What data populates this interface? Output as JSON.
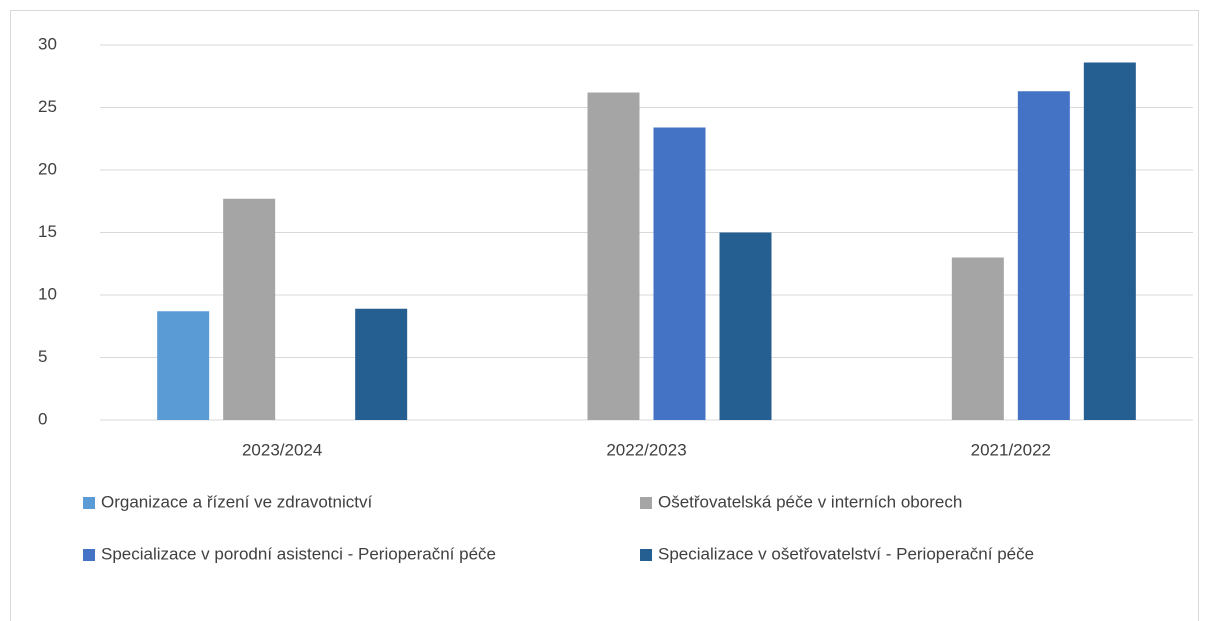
{
  "chart_data": {
    "type": "bar",
    "categories": [
      "2023/2024",
      "2022/2023",
      "2021/2022"
    ],
    "series": [
      {
        "name": "Organizace a řízení ve zdravotnictví",
        "color": "#5b9bd5",
        "values": [
          8.7,
          null,
          null
        ]
      },
      {
        "name": "Ošetřovatelská péče v interních oborech",
        "color": "#a5a5a5",
        "values": [
          17.7,
          26.2,
          13.0
        ]
      },
      {
        "name": "Specializace v porodní asistenci - Perioperační péče",
        "color": "#4472c4",
        "values": [
          null,
          23.4,
          26.3
        ]
      },
      {
        "name": "Specializace v ošetřovatelství - Perioperační péče",
        "color": "#255e91",
        "values": [
          8.9,
          15.0,
          28.6
        ]
      }
    ],
    "ylim": [
      0,
      30
    ],
    "yticks": [
      0,
      5,
      10,
      15,
      20,
      25,
      30
    ],
    "grid": true,
    "legend": "bottom"
  }
}
